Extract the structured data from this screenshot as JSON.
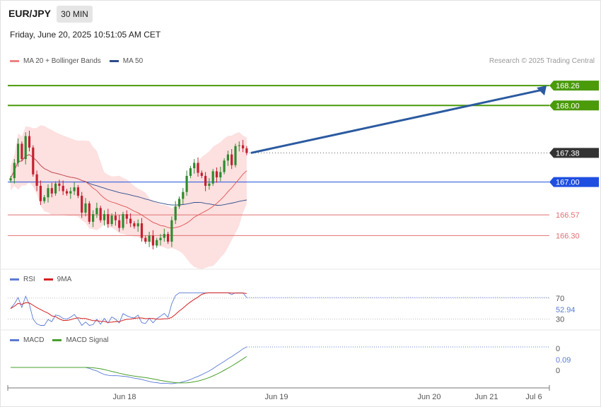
{
  "header": {
    "symbol": "EUR/JPY",
    "timeframe": "30 MIN",
    "datetime": "Friday, June 20, 2025 10:51:05 AM CET"
  },
  "credit": "Research © 2025 Trading Central",
  "legends": {
    "main": [
      {
        "label": "MA 20 + Bollinger Bands",
        "color": "#f08080"
      },
      {
        "label": "MA 50",
        "color": "#2b4c8c"
      }
    ],
    "rsi": [
      {
        "label": "RSI",
        "color": "#5b7bd5"
      },
      {
        "label": "9MA",
        "color": "#d62020"
      }
    ],
    "macd": [
      {
        "label": "MACD",
        "color": "#5b7bd5"
      },
      {
        "label": "MACD Signal",
        "color": "#4aa02c"
      }
    ]
  },
  "colors": {
    "up": "#2e8b2e",
    "down": "#c42030",
    "resistance": "#4a9a0a",
    "pivot": "#1e4fe0",
    "support": "#e07070",
    "current": "#333333",
    "bollinger_fill": "#fde0e0",
    "arrow": "#2b5aa0"
  },
  "chart_data": {
    "type": "candlestick",
    "price_ylim": [
      165.86,
      168.52
    ],
    "x_ticks": [
      "Jun 18",
      "Jun 19",
      "Jun 20",
      "Jun 21",
      "Jul 6"
    ],
    "levels": [
      {
        "value": "168.26",
        "kind": "resistance"
      },
      {
        "value": "168.00",
        "kind": "resistance"
      },
      {
        "value": "167.38",
        "kind": "current"
      },
      {
        "value": "167.00",
        "kind": "pivot"
      },
      {
        "value": "166.57",
        "kind": "support"
      },
      {
        "value": "166.30",
        "kind": "support"
      }
    ],
    "forecast_arrow": {
      "from": 167.38,
      "to": 168.26,
      "direction": "up"
    },
    "closes": [
      167.05,
      167.25,
      167.5,
      167.3,
      167.6,
      167.45,
      167.1,
      166.95,
      166.75,
      166.8,
      166.92,
      166.85,
      166.98,
      166.95,
      166.88,
      166.85,
      166.88,
      166.93,
      166.82,
      166.6,
      166.72,
      166.48,
      166.58,
      166.66,
      166.5,
      166.58,
      166.45,
      166.56,
      166.5,
      166.4,
      166.58,
      166.52,
      166.46,
      166.42,
      166.46,
      166.27,
      166.22,
      166.3,
      166.17,
      166.24,
      166.27,
      166.32,
      166.22,
      166.5,
      166.68,
      166.78,
      166.87,
      167.08,
      167.18,
      167.25,
      167.12,
      167.08,
      166.95,
      166.98,
      167.14,
      167.06,
      167.13,
      167.28,
      167.36,
      167.22,
      167.47,
      167.48,
      167.44,
      167.38
    ],
    "rsi": {
      "ylim": [
        0,
        100
      ],
      "ticks": [
        "70",
        "30"
      ],
      "current_label": "52.94"
    },
    "macd": {
      "ticks": [
        "0",
        "0"
      ],
      "current_label": "0.09"
    }
  }
}
